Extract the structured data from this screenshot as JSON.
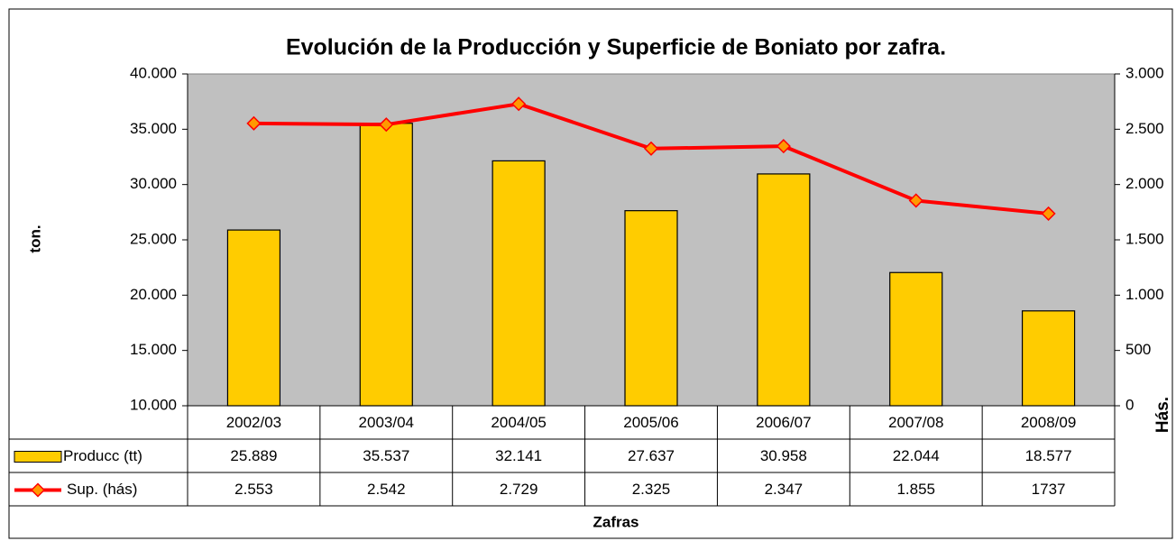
{
  "chart_data": {
    "type": "bar-line",
    "title": "Evolución de la Producción y Superficie de Boniato por zafra.",
    "y_label": "ton.",
    "y2_label": "Hás.",
    "x_label": "Zafras",
    "categories": [
      "2002/03",
      "2003/04",
      "2004/05",
      "2005/06",
      "2006/07",
      "2007/08",
      "2008/09"
    ],
    "series": [
      {
        "name": "Producc (tt)",
        "type": "bar",
        "color": "#FFCC00",
        "values": [
          25889,
          35537,
          32141,
          27637,
          30958,
          22044,
          18577
        ],
        "value_labels": [
          "25.889",
          "35.537",
          "32.141",
          "27.637",
          "30.958",
          "22.044",
          "18.577"
        ]
      },
      {
        "name": "Sup. (hás)",
        "type": "line",
        "axis": "y2",
        "color": "#FF0000",
        "marker_color": "#FF9900",
        "values": [
          2553,
          2542,
          2729,
          2325,
          2347,
          1855,
          1737
        ],
        "value_labels": [
          "2.553",
          "2.542",
          "2.729",
          "2.325",
          "2.347",
          "1.855",
          "1737"
        ]
      }
    ],
    "ylim": [
      10000,
      40000
    ],
    "yticks": [
      {
        "value": 10000,
        "label": "10.000"
      },
      {
        "value": 15000,
        "label": "15.000"
      },
      {
        "value": 20000,
        "label": "20.000"
      },
      {
        "value": 25000,
        "label": "25.000"
      },
      {
        "value": 30000,
        "label": "30.000"
      },
      {
        "value": 35000,
        "label": "35.000"
      },
      {
        "value": 40000,
        "label": "40.000"
      }
    ],
    "y2lim": [
      0,
      3000
    ],
    "y2ticks": [
      0,
      500,
      {
        "value": 1000,
        "label": "1.000"
      },
      {
        "value": 1500,
        "label": "1.500"
      },
      {
        "value": 2000,
        "label": "2.000"
      },
      {
        "value": 2500,
        "label": "2.500"
      },
      {
        "value": 3000,
        "label": "3.000"
      }
    ],
    "plot_background": "#C0C0C0"
  }
}
